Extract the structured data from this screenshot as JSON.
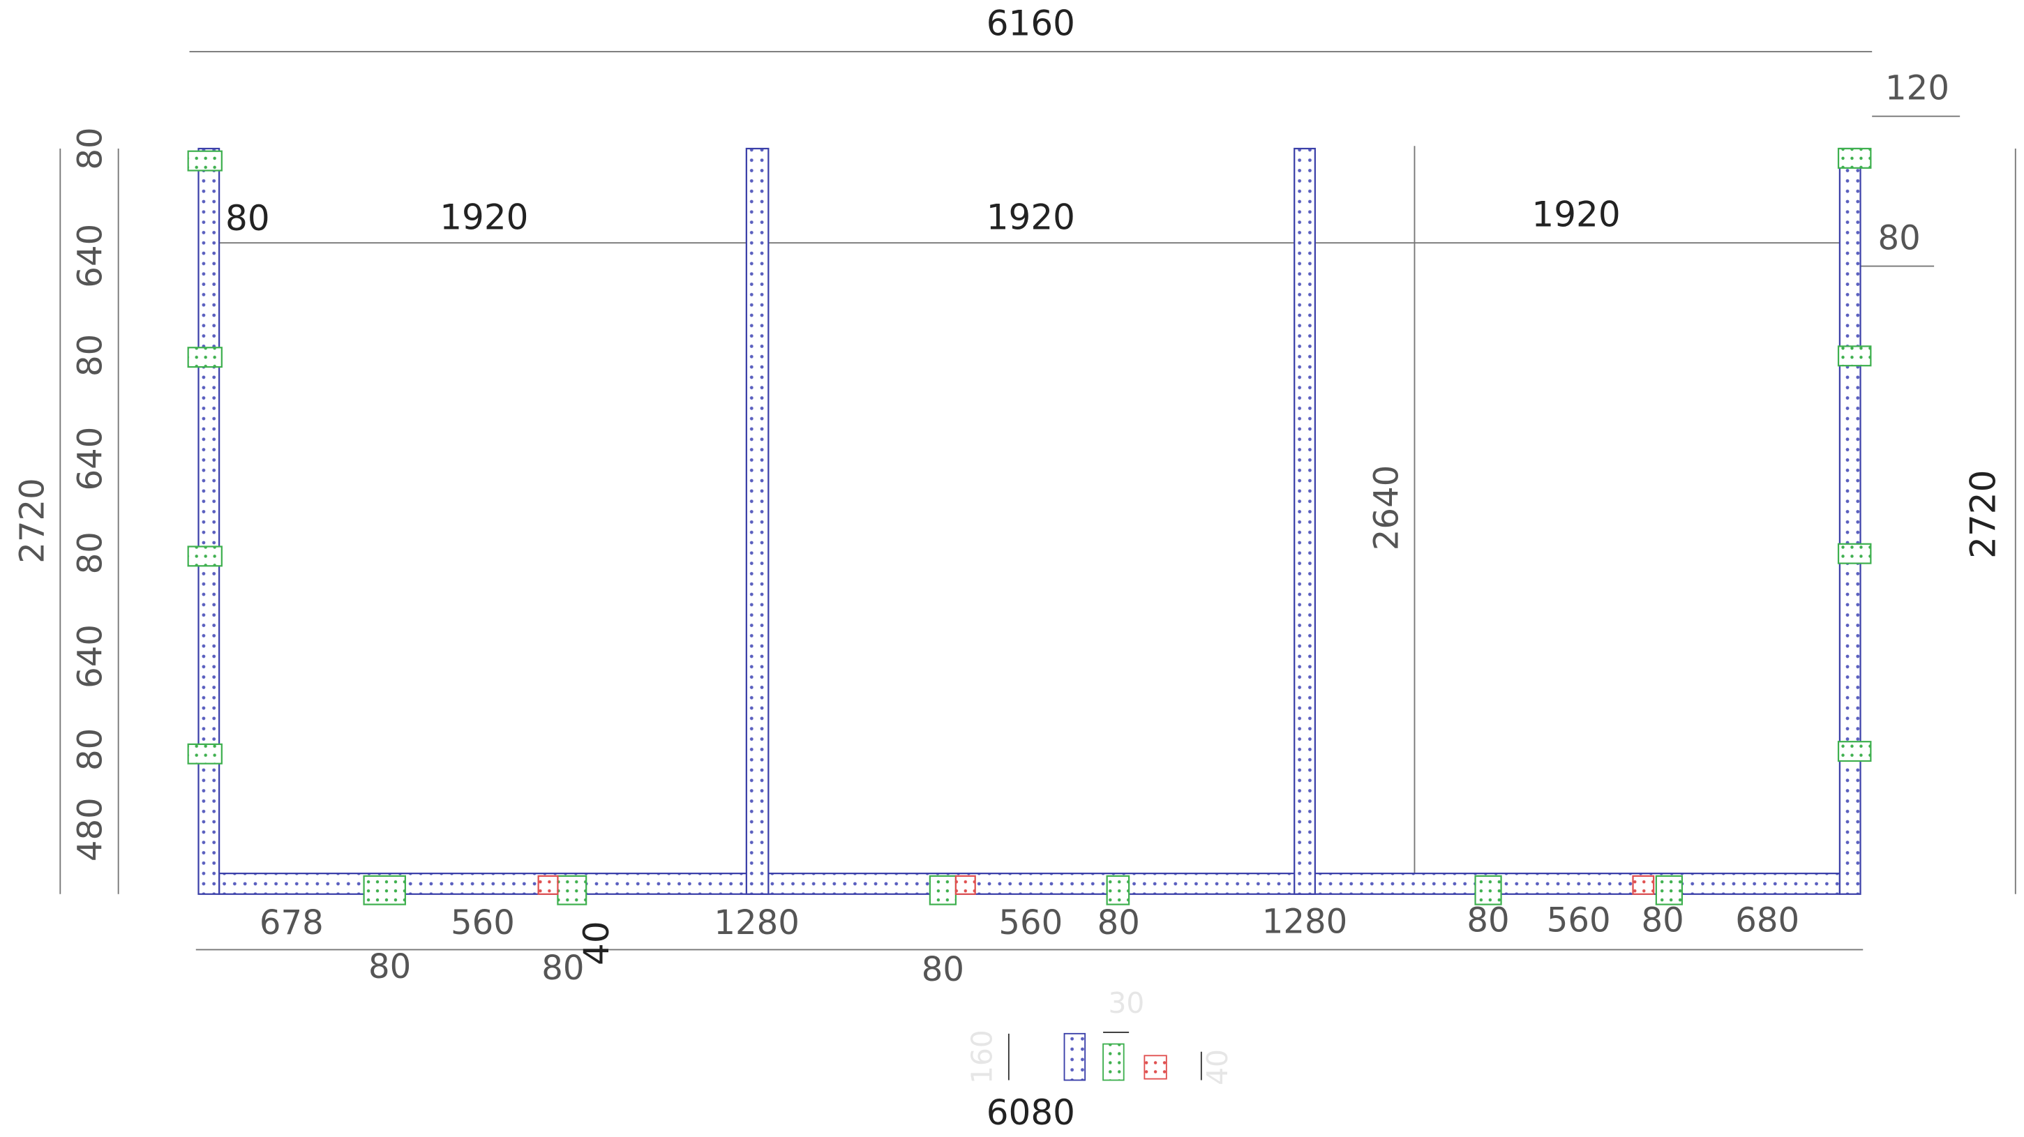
{
  "dimensions": {
    "overall_width_top": "6160",
    "offset_right": "120",
    "bay_row": [
      "80",
      "1920",
      "1920",
      "1920",
      "80"
    ],
    "left_column_segments": [
      "80",
      "640",
      "80",
      "640",
      "80",
      "640",
      "80",
      "480"
    ],
    "height_left": "2720",
    "height_right": "2720",
    "height_inner": "2640",
    "bottom_row": [
      "678",
      "560",
      "1280",
      "560",
      "80",
      "1280",
      "80",
      "560",
      "80",
      "680"
    ],
    "bottom_second_row": [
      "80",
      "80",
      "40",
      "80"
    ],
    "overall_width_bottom": "6080"
  },
  "legend": {
    "labels": [
      "160",
      "30",
      "40"
    ]
  }
}
